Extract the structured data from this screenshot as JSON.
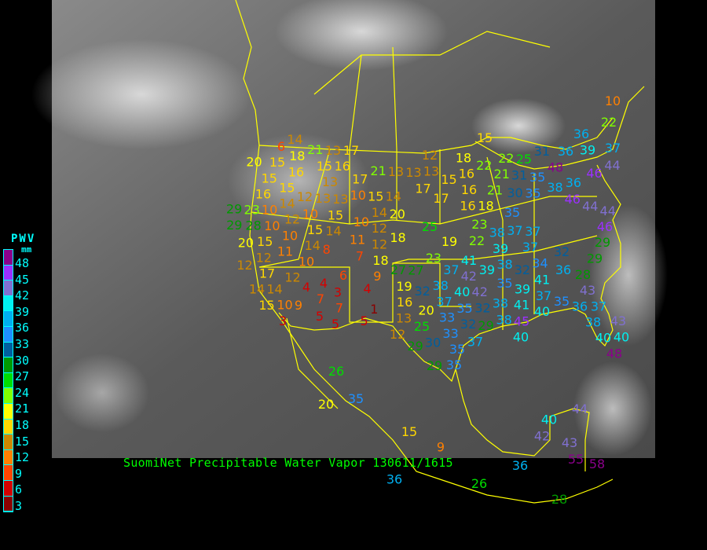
{
  "title": "SuomiNet Precipitable Water Vapor 130611/1615",
  "legend": {
    "title": "PWV",
    "unit": "mm",
    "ticks": [
      "48",
      "45",
      "42",
      "39",
      "36",
      "33",
      "30",
      "27",
      "24",
      "21",
      "18",
      "15",
      "12",
      "9",
      "6",
      "3"
    ],
    "colors": [
      "#8b008b",
      "#9b30ff",
      "#8070d0",
      "#00f0f0",
      "#00b0f0",
      "#1e90ff",
      "#005f9f",
      "#009900",
      "#00dd00",
      "#80ff00",
      "#ffff00",
      "#ffd700",
      "#cc8800",
      "#ff8000",
      "#ff4500",
      "#d40000",
      "#8b0000"
    ]
  },
  "colors": {
    "borders": "#ffff00",
    "legend_text": "#00ffff",
    "title": "#00ff00",
    "background": "#000000"
  },
  "stations": [
    14,
    21,
    6,
    18,
    13,
    17,
    20,
    15,
    16,
    15,
    16,
    21,
    13,
    15,
    13,
    17,
    10,
    15,
    16,
    14,
    12,
    13,
    13,
    15,
    14,
    20,
    29,
    23,
    10,
    12,
    10,
    15,
    29,
    28,
    10,
    15,
    14,
    10,
    14,
    12,
    20,
    10,
    15,
    14,
    11,
    12,
    18,
    11,
    10,
    8,
    7,
    18,
    12,
    12,
    17,
    27,
    9,
    6,
    12,
    14,
    4,
    4,
    4,
    19,
    14,
    3,
    7,
    16,
    15,
    10,
    9,
    7,
    1,
    3,
    5,
    5,
    5,
    13,
    25,
    12,
    15,
    36,
    31,
    36,
    39,
    37,
    12,
    13,
    13,
    15,
    18,
    16,
    22,
    22,
    25,
    48,
    46,
    44,
    21,
    31,
    35,
    17,
    16,
    21,
    30,
    35,
    38,
    36,
    17,
    16,
    18,
    46,
    44,
    44,
    35,
    25,
    23,
    22,
    38,
    37,
    37,
    46,
    29,
    19,
    39,
    37,
    29,
    23,
    38,
    34,
    32,
    41,
    37,
    39,
    32,
    36,
    28,
    27,
    42,
    35,
    41,
    32,
    38,
    40,
    42,
    39,
    37,
    43,
    37,
    35,
    32,
    38,
    35,
    36,
    37,
    20,
    41,
    40,
    33,
    32,
    38,
    45,
    43,
    38,
    29,
    33,
    40,
    40,
    40,
    30,
    35,
    37,
    29,
    48,
    35,
    10,
    22,
    29,
    26,
    35,
    20,
    15,
    40,
    44,
    42,
    43,
    55,
    58,
    36,
    9,
    36,
    26,
    28
  ]
}
